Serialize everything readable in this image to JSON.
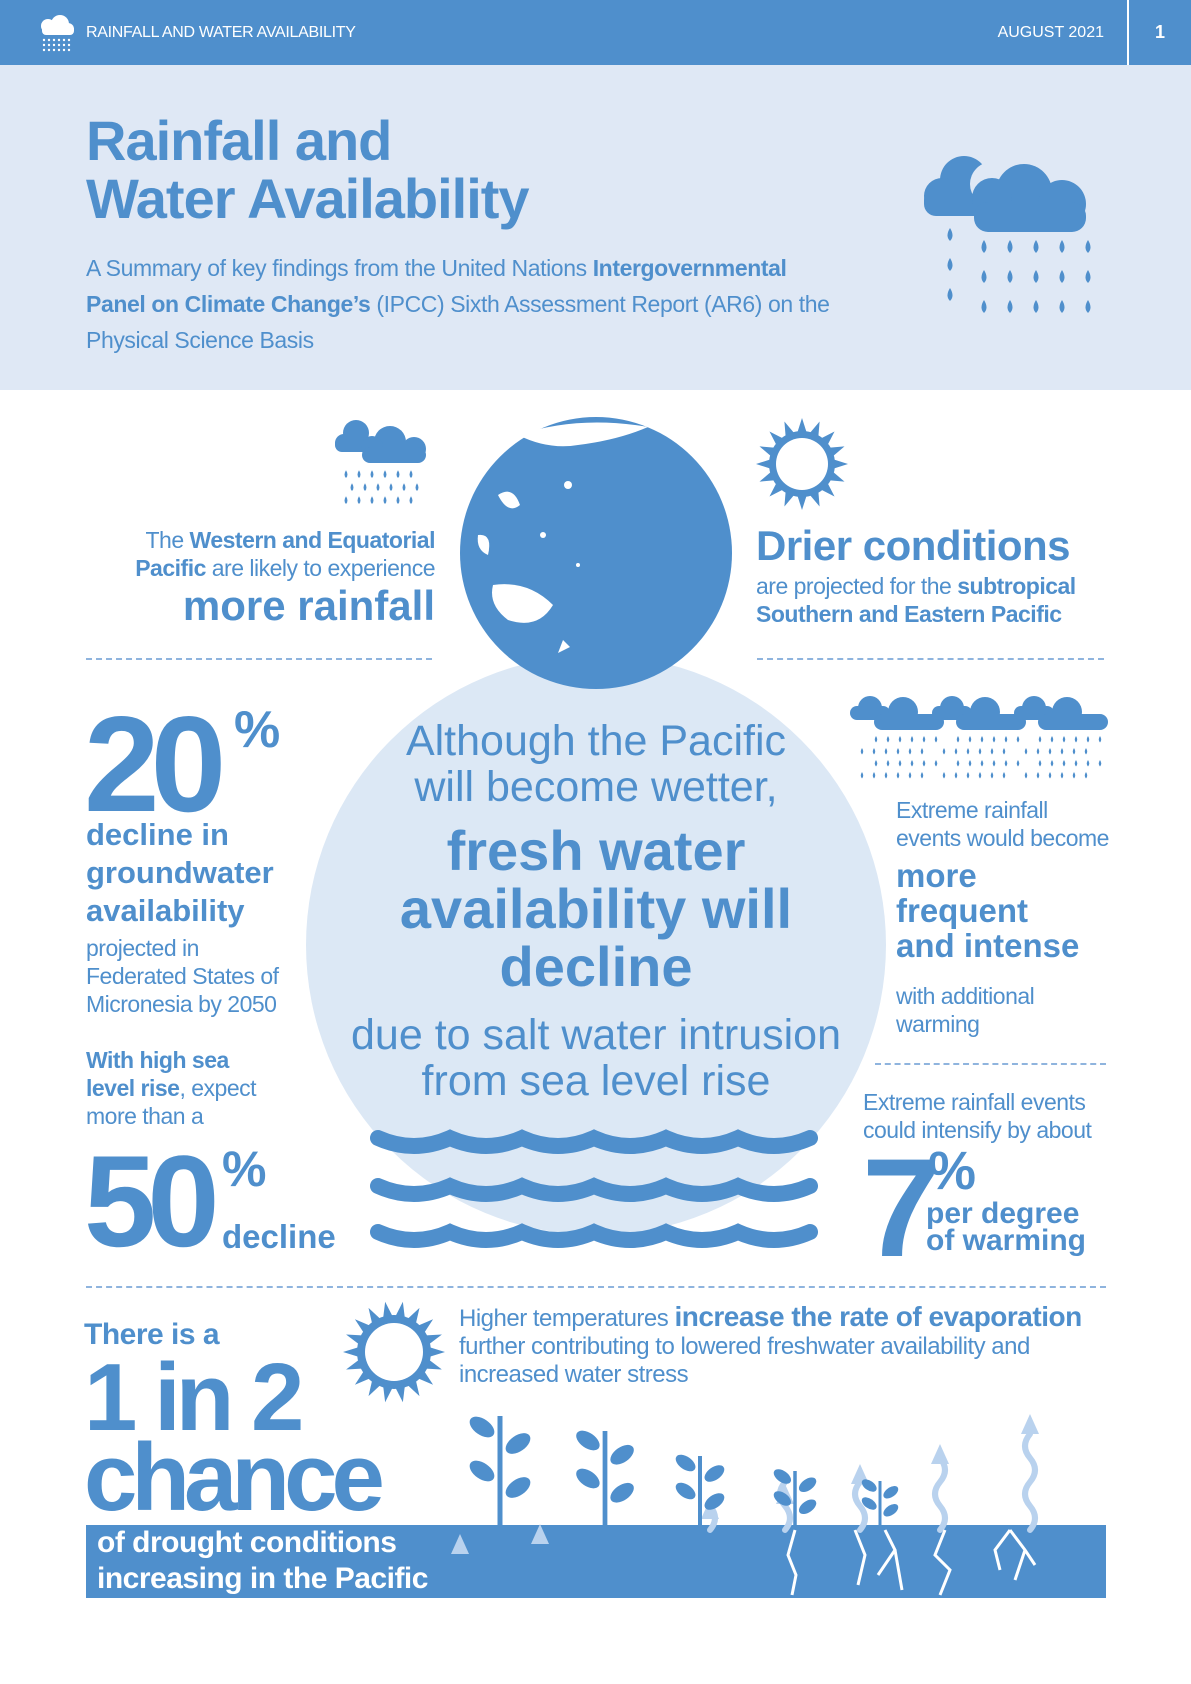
{
  "colors": {
    "primary": "#4f8fcc",
    "light_band": "#dfe8f5",
    "circle": "#dce8f5",
    "vapor": "#b9d2ee"
  },
  "header": {
    "icon": "rain-cloud-icon",
    "title": "RAINFALL AND  WATER AVAILABILITY",
    "date": "AUGUST 2021",
    "page": "1"
  },
  "hero": {
    "title_line1": "Rainfall and",
    "title_line2": "Water Availability",
    "subtitle_part1": "A Summary of key findings from the United Nations ",
    "subtitle_bold": "Intergovernmental Panel on Climate Change’s",
    "subtitle_part2": " (IPCC) Sixth Assessment Report (AR6) on the Physical Science Basis",
    "icon": "rain-cloud-icon"
  },
  "wetter": {
    "prefix": "The ",
    "bold": "Western and Equatorial Pacific",
    "suffix": " are likely to experience",
    "emphasis": "more rainfall",
    "icon": "rain-cloud-icon"
  },
  "drier": {
    "heading": "Drier conditions",
    "prefix": "are projected for the ",
    "bold": "subtropical Southern and Eastern Pacific",
    "icon": "sun-icon"
  },
  "groundwater": {
    "value": "20",
    "unit": "%",
    "bold_lines": [
      "decline in",
      "groundwater",
      "availability"
    ],
    "detail_lines": [
      "projected in",
      "Federated States of",
      "Micronesia by 2050"
    ],
    "sea_bold1": "With high sea",
    "sea_bold2": "level rise",
    ", ": "",
    "sea_rest1": ", expect",
    "sea_rest2": "more than a",
    "value2": "50",
    "unit2": "%",
    "label2": "decline"
  },
  "center": {
    "line1": "Although the Pacific",
    "line2": "will become wetter,",
    "bold1": "fresh water",
    "bold2": "availability will",
    "bold3": "decline",
    "line3": "due to salt water intrusion",
    "line4": "from sea level rise",
    "icon": "waves-icon"
  },
  "extreme": {
    "icon": "rain-clouds-icon",
    "intro1": "Extreme rainfall",
    "intro2": "events would become",
    "bold1": "more",
    "bold2": "frequent",
    "bold3": "and intense",
    "outro1": "with additional",
    "outro2": "warming",
    "intensify1": "Extreme rainfall events",
    "intensify2": "could intensify by about",
    "value": "7",
    "unit": "%",
    "per1": "per degree",
    "per2": "of warming"
  },
  "drought": {
    "intro": "There is a",
    "odds": "1 in 2",
    "chance": "chance",
    "bar1": "of drought conditions",
    "bar2": "increasing in the Pacific"
  },
  "evaporation": {
    "normal": "Higher temperatures ",
    "bold": "increase the rate of evaporation",
    "rest1": "further contributing to lowered freshwater availability and",
    "rest2": "increased water stress",
    "icon": "sun-icon"
  }
}
